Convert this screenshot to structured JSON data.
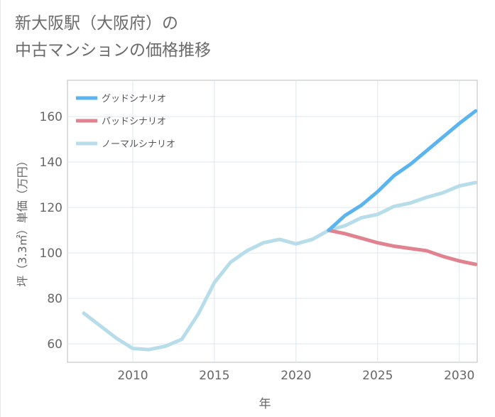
{
  "title_line1": "新大阪駅（大阪府）の",
  "title_line2": "中古マンションの価格推移",
  "chart_data": {
    "type": "line",
    "xlabel": "年",
    "ylabel": "坪（3.3㎡）単価（万円）",
    "xlim": [
      2006,
      2031.1
    ],
    "ylim": [
      51.9,
      176
    ],
    "xticks": [
      2010,
      2015,
      2020,
      2025,
      2030
    ],
    "yticks": [
      60,
      80,
      100,
      120,
      140,
      160
    ],
    "grid": true,
    "legend_position": "top-left",
    "series": [
      {
        "name": "グッドシナリオ",
        "color": "#5ab4ee",
        "x": [
          2022,
          2023,
          2024,
          2025,
          2026,
          2027,
          2028,
          2029,
          2030,
          2031
        ],
        "y": [
          110,
          116.5,
          121,
          127,
          134,
          139,
          145,
          151,
          157,
          162.5
        ]
      },
      {
        "name": "バッドシナリオ",
        "color": "#e08290",
        "x": [
          2022,
          2023,
          2024,
          2025,
          2026,
          2027,
          2028,
          2029,
          2030,
          2031
        ],
        "y": [
          110,
          108.5,
          106.5,
          104.5,
          103,
          102,
          101,
          98.5,
          96.5,
          95
        ]
      },
      {
        "name": "ノーマルシナリオ",
        "color": "#b7dcea",
        "x": [
          2007,
          2008,
          2009,
          2010,
          2011,
          2012,
          2013,
          2014,
          2015,
          2016,
          2017,
          2018,
          2019,
          2020,
          2021,
          2022,
          2023,
          2024,
          2025,
          2026,
          2027,
          2028,
          2029,
          2030,
          2031
        ],
        "y": [
          73.5,
          68,
          62.5,
          58,
          57.5,
          59,
          62,
          73,
          87,
          96,
          101,
          104.5,
          106,
          104,
          106,
          110,
          112,
          115.5,
          117,
          120.5,
          122,
          124.5,
          126.5,
          129.5,
          131
        ]
      }
    ]
  }
}
